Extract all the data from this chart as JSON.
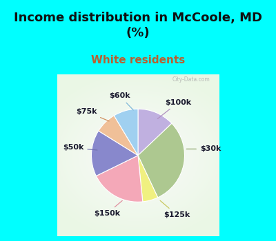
{
  "title": "Income distribution in McCoole, MD\n(%)",
  "subtitle": "White residents",
  "labels": [
    "$100k",
    "$30k",
    "$125k",
    "$150k",
    "$50k",
    "$75k",
    "$60k"
  ],
  "values": [
    12,
    28,
    5,
    18,
    15,
    7,
    8
  ],
  "colors": [
    "#c0b0e0",
    "#adc890",
    "#f0f080",
    "#f4a8b8",
    "#8888cc",
    "#f0c098",
    "#a0d0f0"
  ],
  "background_cyan": "#00ffff",
  "background_chart_color1": "#c8e8c8",
  "background_chart_color2": "#e8f4e8",
  "title_color": "#101010",
  "subtitle_color": "#b86030",
  "title_fontsize": 13,
  "subtitle_fontsize": 11,
  "label_fontsize": 8,
  "start_angle": 90,
  "label_data": [
    [
      "$100k",
      [
        0.28,
        0.55
      ],
      [
        0.62,
        0.82
      ]
    ],
    [
      "$30k",
      [
        0.72,
        0.1
      ],
      [
        1.12,
        0.1
      ]
    ],
    [
      "$125k",
      [
        0.32,
        -0.68
      ],
      [
        0.6,
        -0.92
      ]
    ],
    [
      "$150k",
      [
        -0.22,
        -0.68
      ],
      [
        -0.48,
        -0.9
      ]
    ],
    [
      "$50k",
      [
        -0.6,
        0.08
      ],
      [
        -1.0,
        0.12
      ]
    ],
    [
      "$75k",
      [
        -0.42,
        0.52
      ],
      [
        -0.8,
        0.68
      ]
    ],
    [
      "$60k",
      [
        -0.05,
        0.68
      ],
      [
        -0.28,
        0.92
      ]
    ]
  ],
  "line_colors": [
    "#b090c0",
    "#90a870",
    "#c8c860",
    "#e090a0",
    "#7070b0",
    "#d09060",
    "#80b8d8"
  ]
}
